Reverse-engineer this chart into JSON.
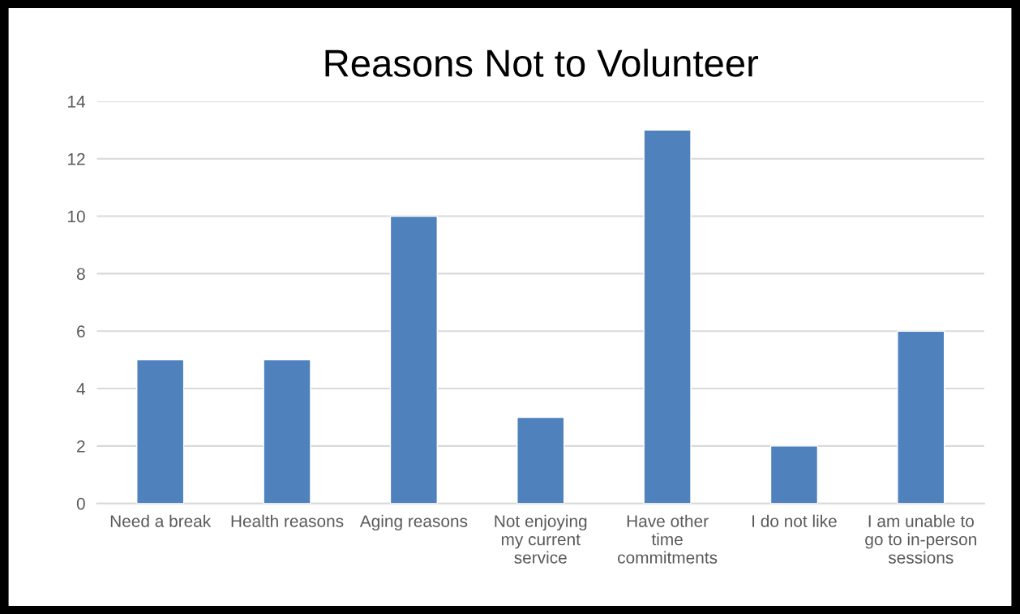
{
  "chart_data": {
    "type": "bar",
    "title": "Reasons Not to Volunteer",
    "categories": [
      "Need a break",
      "Health reasons",
      "Aging reasons",
      "Not enjoying\nmy current\nservice",
      "Have other\ntime\ncommitments",
      "I do not like",
      "I am unable to\ngo to in-person\nsessions"
    ],
    "values": [
      5,
      5,
      10,
      3,
      13,
      2,
      6
    ],
    "color": "#4f81bd",
    "ylim": [
      0,
      14
    ],
    "yticks": [
      0,
      2,
      4,
      6,
      8,
      10,
      12,
      14
    ],
    "grid": "y",
    "legend": false
  }
}
